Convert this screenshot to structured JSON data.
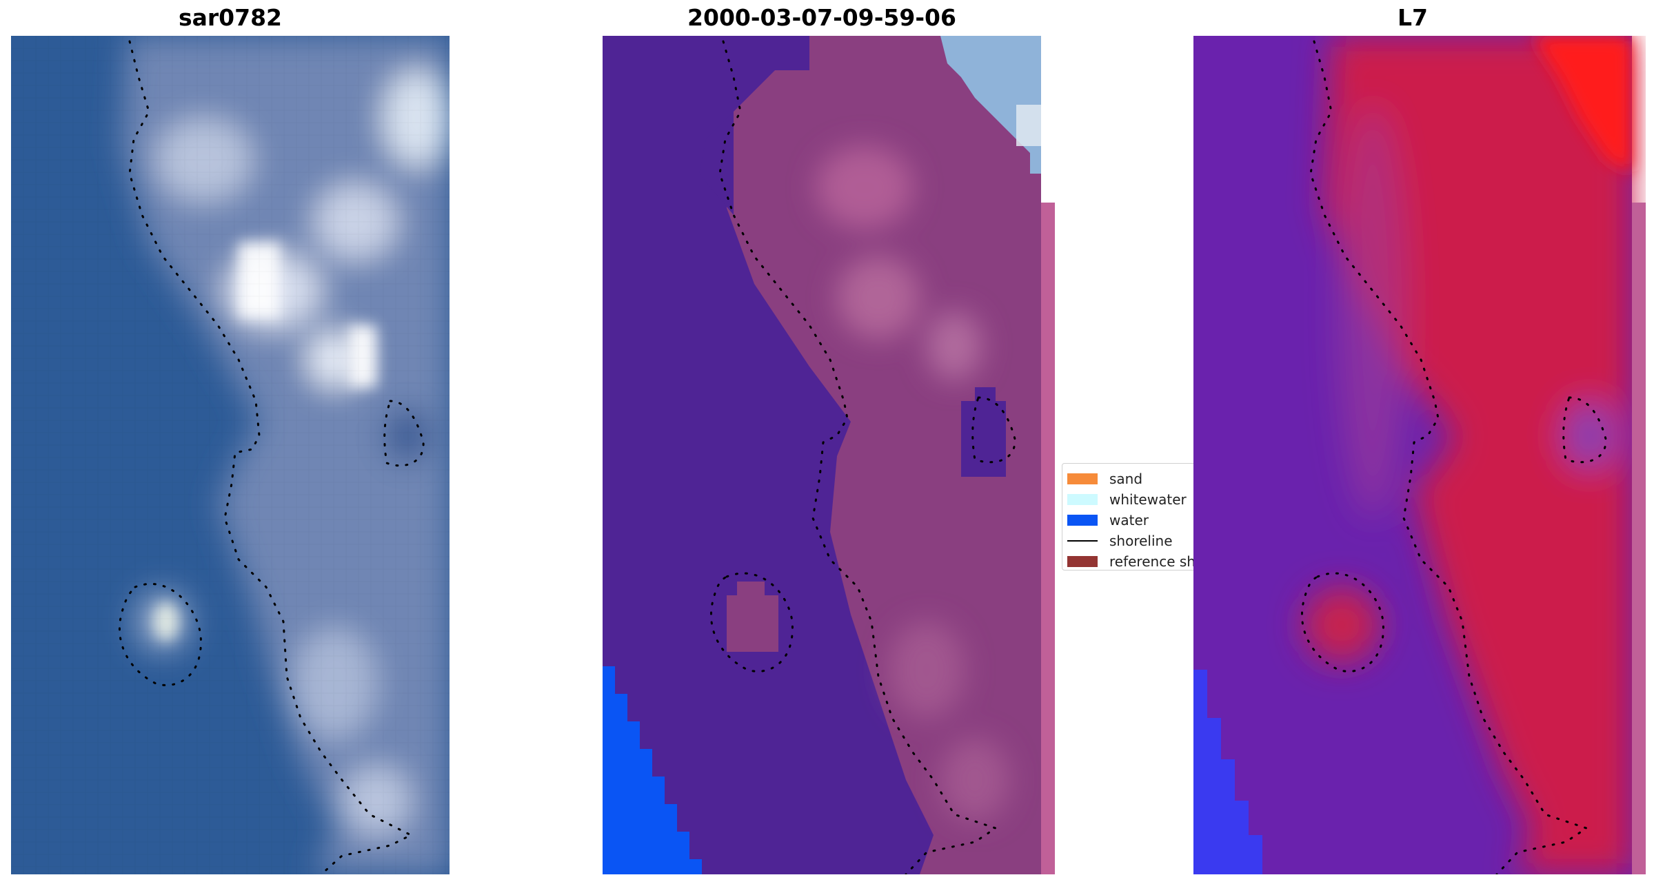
{
  "panels": {
    "left": {
      "title": "sar0782"
    },
    "middle": {
      "title": "2000-03-07-09-59-06"
    },
    "right": {
      "title": "L7"
    }
  },
  "legend": {
    "items": [
      {
        "label": "sand",
        "color": "#f68b3a",
        "kind": "patch"
      },
      {
        "label": "whitewater",
        "color": "#cdfaff",
        "kind": "patch"
      },
      {
        "label": "water",
        "color": "#0a55f4",
        "kind": "patch"
      },
      {
        "label": "shoreline",
        "color": "#000000",
        "kind": "line"
      },
      {
        "label": "reference shoreline",
        "color": "#933432",
        "kind": "patch"
      }
    ]
  },
  "colors": {
    "sea": "#2e5b98",
    "class_water_overlay": "#4f2495",
    "land_mauve": "#8c3f80",
    "nir_land_red": "#cf1f4a",
    "nir_water_purple": "#6a1fb0"
  }
}
